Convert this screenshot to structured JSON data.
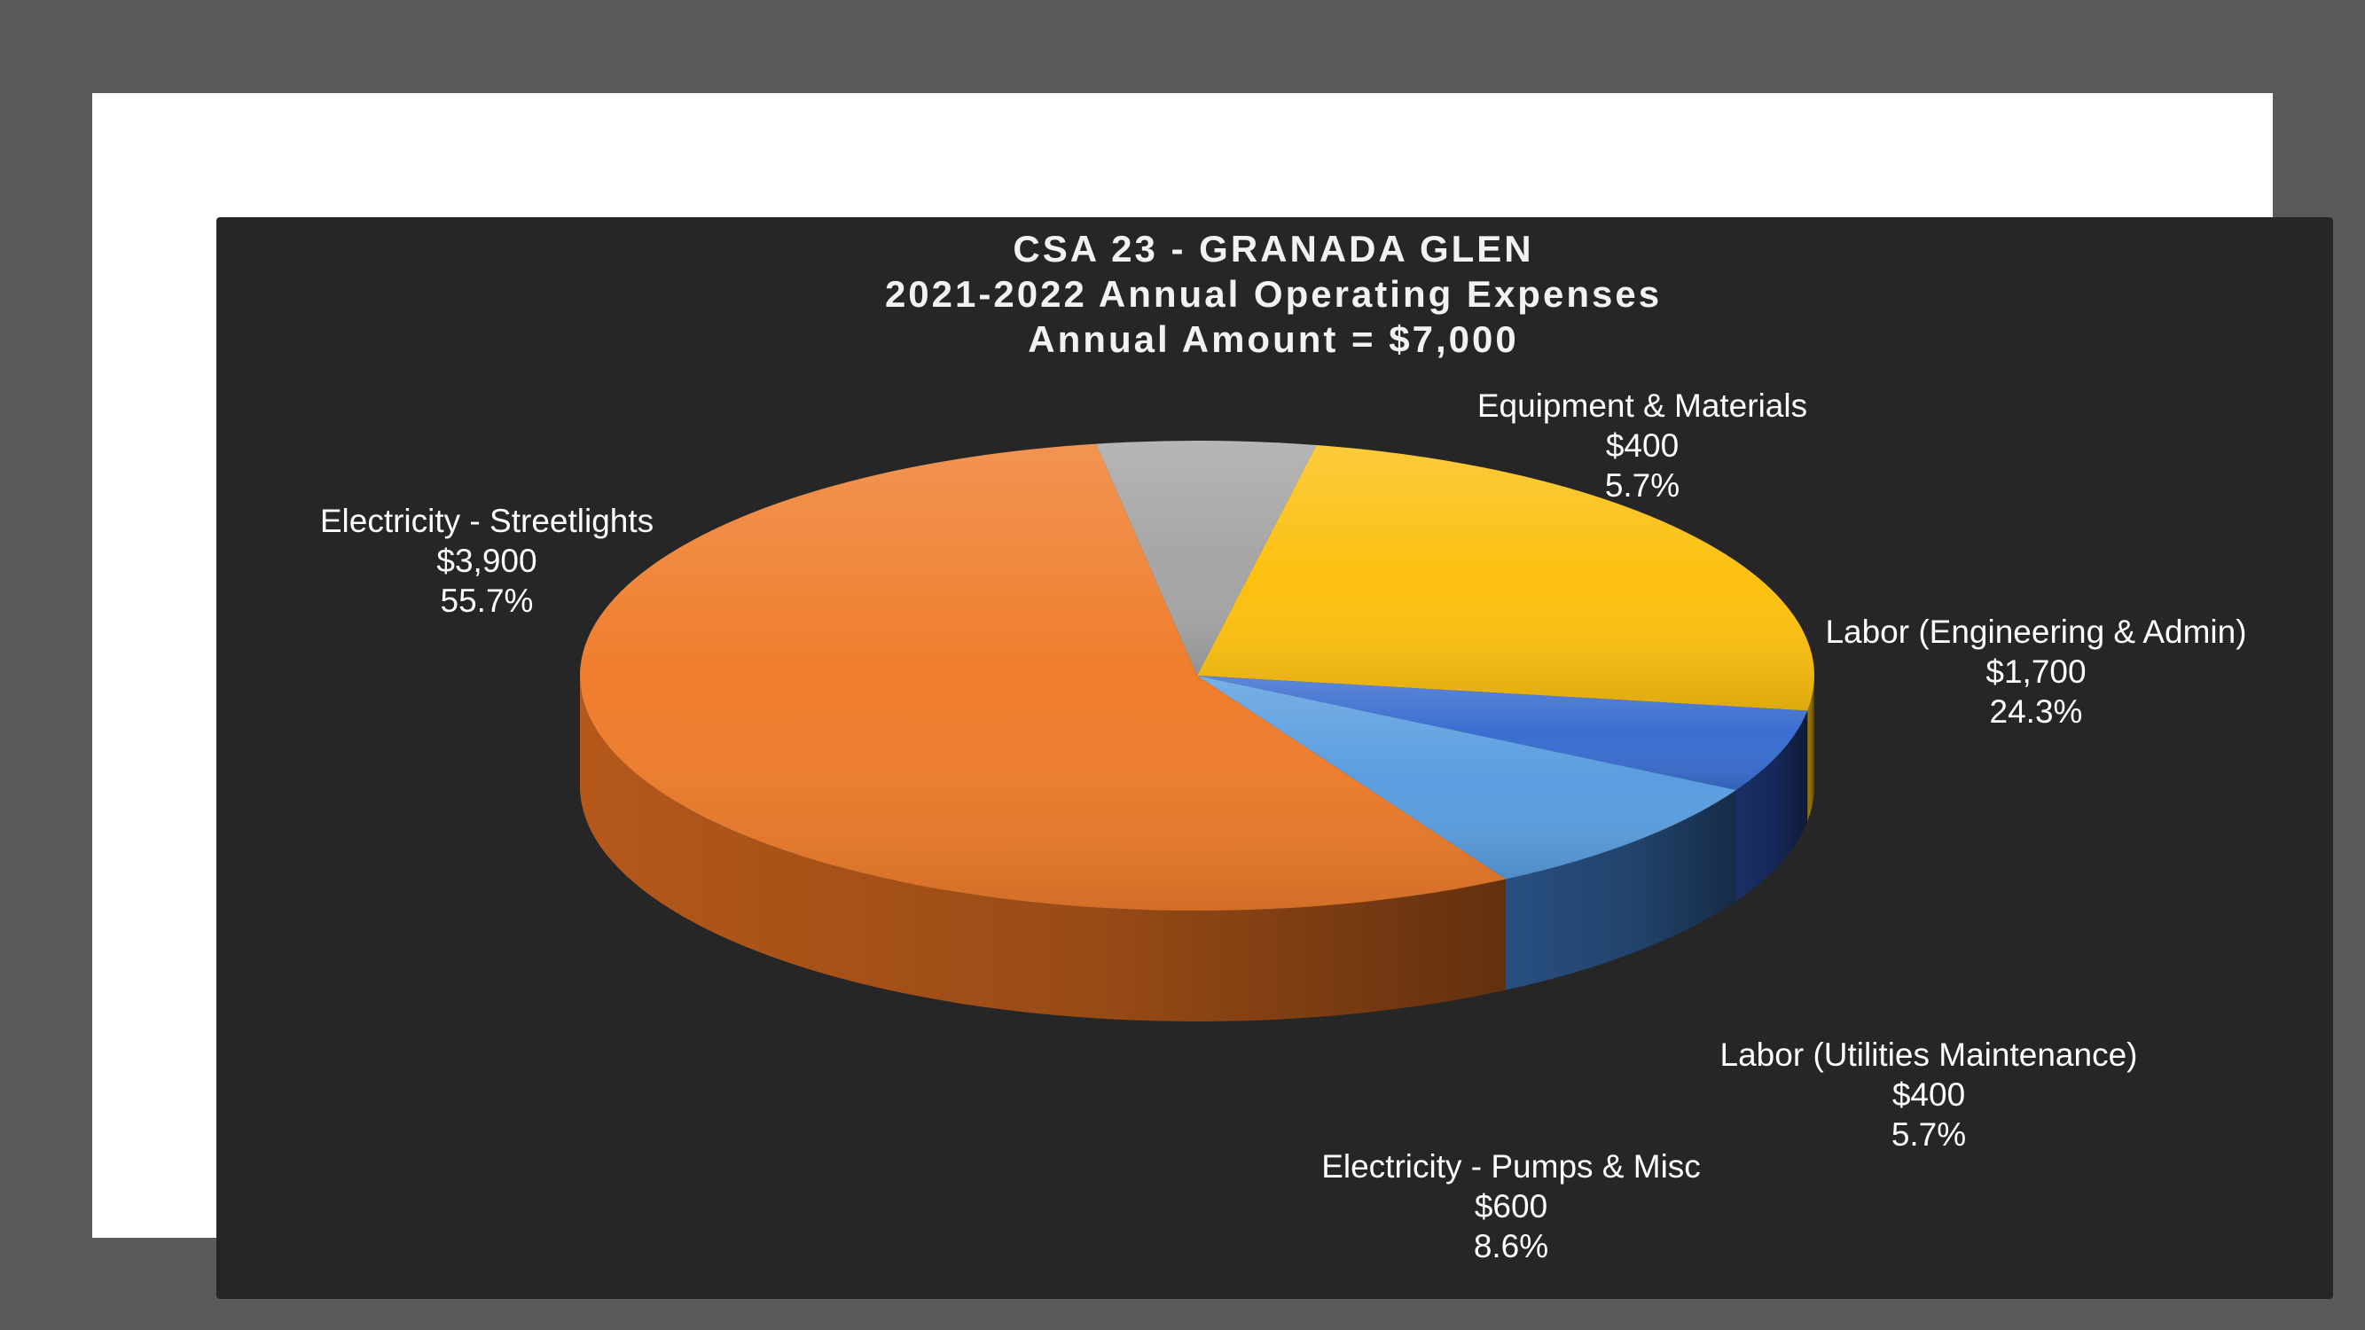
{
  "chart_data": {
    "type": "pie",
    "title_lines": [
      "CSA 23 - GRANADA GLEN",
      "2021-2022 Annual Operating Expenses",
      "Annual Amount = $7,000"
    ],
    "slices": [
      {
        "label": "Electricity - Streetlights",
        "value": 3900,
        "value_text": "$3,900",
        "percent_text": "55.7%",
        "color": "#ef7d2c",
        "side_color": "#b4581a"
      },
      {
        "label": "Equipment & Materials",
        "value": 400,
        "value_text": "$400",
        "percent_text": "5.7%",
        "color": "#a6a6a6",
        "side_color": "#6e6e6e"
      },
      {
        "label": "Labor (Engineering & Admin)",
        "value": 1700,
        "value_text": "$1,700",
        "percent_text": "24.3%",
        "color": "#fcc010",
        "side_color": "#a07a00"
      },
      {
        "label": "Labor (Utilities Maintenance)",
        "value": 400,
        "value_text": "$400",
        "percent_text": "5.7%",
        "color": "#3a6ed0",
        "side_color": "#1a2f66"
      },
      {
        "label": "Electricity - Pumps & Misc",
        "value": 600,
        "value_text": "$600",
        "percent_text": "8.6%",
        "color": "#5b9ee0",
        "side_color": "#284f80"
      }
    ],
    "legend": "none",
    "style": "3d"
  }
}
